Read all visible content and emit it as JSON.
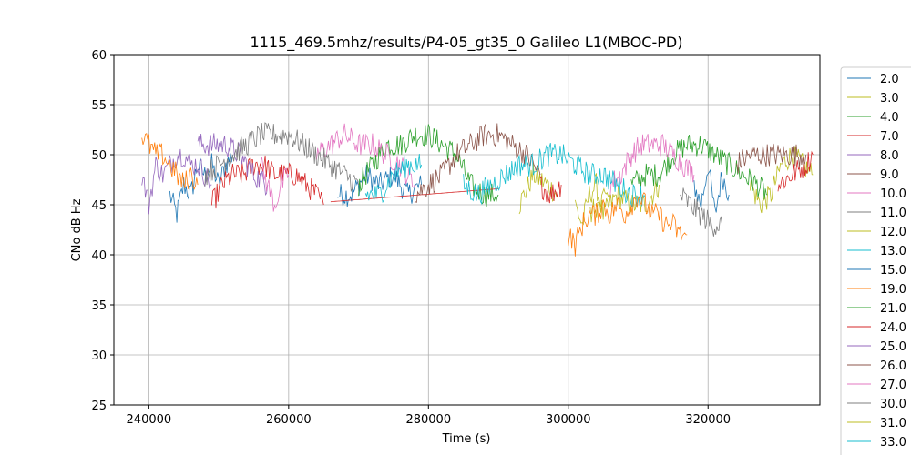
{
  "chart_data": {
    "type": "line",
    "title": "1115_469.5mhz/results/P4-05_gt35_0 Galileo L1(MBOC-PD)",
    "xlabel": "Time (s)",
    "ylabel": "CNo dB Hz",
    "xlim": [
      235000,
      336000
    ],
    "ylim": [
      25,
      60
    ],
    "xticks": [
      240000,
      260000,
      280000,
      300000,
      320000
    ],
    "yticks": [
      25,
      30,
      35,
      40,
      45,
      50,
      55,
      60
    ],
    "grid": true,
    "legend_position": "right-outside",
    "legend_visible_entries": [
      "2.0",
      "3.0",
      "4.0",
      "7.0",
      "8.0",
      "9.0",
      "10.0",
      "11.0",
      "12.0",
      "13.0",
      "15.0",
      "19.0",
      "21.0",
      "24.0",
      "25.0",
      "26.0",
      "27.0",
      "30.0",
      "31.0",
      "33.0"
    ],
    "series": [
      {
        "name": "2.0",
        "color": "#1f77b4",
        "segments": [
          {
            "x": [
              243000,
              244000,
              245000,
              246000,
              247000,
              248000,
              249000,
              250000,
              251000,
              252000
            ],
            "y": [
              46,
              44,
              47,
              46,
              49,
              48,
              49,
              47,
              49,
              50
            ]
          },
          {
            "x": [
              267000,
              269000,
              271000,
              273000,
              275000,
              277000,
              279000
            ],
            "y": [
              46,
              46,
              48,
              47,
              48,
              46,
              47
            ]
          },
          {
            "x": [
              318000,
              319000,
              320000,
              321000,
              322000,
              323000
            ],
            "y": [
              47,
              45,
              49,
              44,
              48,
              46
            ]
          }
        ]
      },
      {
        "name": "3.0",
        "color": "#bcbd22",
        "segments": [
          {
            "x": [
              293000,
              295000,
              297000,
              298500
            ],
            "y": [
              45,
              48,
              47,
              46
            ]
          },
          {
            "x": [
              301000,
              302000,
              303000,
              304000,
              305000,
              307000,
              309000,
              311000,
              313000
            ],
            "y": [
              45,
              43,
              46,
              47,
              44,
              46,
              45,
              45,
              47
            ]
          },
          {
            "x": [
              326000,
              327500,
              329000,
              330500,
              332000,
              333500,
              335000
            ],
            "y": [
              47,
              45,
              46,
              49,
              50,
              49,
              48
            ]
          }
        ]
      },
      {
        "name": "4.0",
        "color": "#2ca02c",
        "segments": [
          {
            "x": [
              270000,
              272000,
              274000,
              276000,
              278000,
              280000,
              282000,
              284000,
              286000,
              288000,
              290000
            ],
            "y": [
              47,
              49,
              51,
              51,
              52,
              52,
              51,
              50,
              47,
              46,
              46
            ]
          },
          {
            "x": [
              309000,
              311000,
              313000,
              315000,
              317000,
              319000,
              321000,
              323000,
              325000,
              327000,
              328500
            ],
            "y": [
              47,
              48,
              48,
              50,
              51,
              51,
              50,
              49,
              48,
              47,
              46
            ]
          }
        ]
      },
      {
        "name": "7.0",
        "color": "#d62728",
        "segments": [
          {
            "x": [
              249000,
              250500,
              252000,
              253500,
              255000,
              256500,
              258000,
              259500,
              261000,
              262500,
              264000,
              265000
            ],
            "y": [
              45,
              47,
              48,
              48,
              49,
              49,
              48,
              48,
              48,
              47,
              46,
              45
            ]
          },
          {
            "x": [
              266000,
              290000
            ],
            "y": [
              45.3,
              46.6
            ]
          },
          {
            "x": [
              296000,
              297500,
              299000
            ],
            "y": [
              47,
              46,
              47
            ]
          },
          {
            "x": [
              330000,
              332000,
              334000,
              335000
            ],
            "y": [
              47,
              48,
              49,
              50
            ]
          }
        ]
      },
      {
        "name": "8.0",
        "color": "#9467bd",
        "segments": [
          {
            "x": [
              239000,
              240000,
              241000,
              242000,
              243000,
              244000,
              245000,
              246000,
              247000,
              248000,
              249000
            ],
            "y": [
              48,
              45,
              49,
              48,
              49,
              50,
              50,
              49,
              49,
              48,
              47
            ]
          },
          {
            "x": [
              247000,
              249000,
              251000,
              253000,
              255000,
              257000
            ],
            "y": [
              51,
              51,
              51,
              50,
              48,
              47
            ]
          }
        ]
      },
      {
        "name": "9.0",
        "color": "#8c564b",
        "segments": [
          {
            "x": [
              278000,
              280000,
              282000,
              284000,
              286000,
              288000,
              290000,
              292000,
              294000,
              296000
            ],
            "y": [
              46,
              47,
              48,
              50,
              51,
              52,
              52,
              51,
              50,
              48
            ]
          },
          {
            "x": [
              324000,
              326000,
              328000,
              330000,
              332000,
              334000
            ],
            "y": [
              49,
              50,
              50,
              50,
              50,
              50
            ]
          }
        ]
      },
      {
        "name": "10.0",
        "color": "#e377c2",
        "segments": [
          {
            "x": [
              256000,
              257000,
              258000,
              259000,
              260000
            ],
            "y": [
              49,
              47,
              45,
              47,
              48
            ]
          },
          {
            "x": [
              264000,
              266000,
              268000,
              270000,
              272000,
              274000,
              276000,
              278000
            ],
            "y": [
              50,
              51,
              52,
              51,
              51,
              50,
              49,
              47
            ]
          },
          {
            "x": [
              306000,
              307500,
              309000,
              310500,
              312000,
              313500,
              315000,
              316500,
              318000
            ],
            "y": [
              47,
              48,
              50,
              51,
              51,
              51,
              50,
              49,
              48
            ]
          }
        ]
      },
      {
        "name": "11.0",
        "color": "#7f7f7f",
        "segments": [
          {
            "x": [
              248000,
              250000,
              252000,
              254000,
              256000,
              258000,
              260000,
              262000,
              264000,
              266000,
              268000,
              270000
            ],
            "y": [
              48,
              49,
              50,
              51,
              52,
              52,
              52,
              51,
              50,
              49,
              48,
              47
            ]
          },
          {
            "x": [
              316000,
              317500,
              319000,
              320500,
              322000
            ],
            "y": [
              46,
              45,
              44,
              43,
              43
            ]
          }
        ]
      },
      {
        "name": "12.0",
        "color": "#bcbd22",
        "segments": [
          {
            "x": [
              303000,
              304500,
              306000
            ],
            "y": [
              44,
              45,
              46
            ]
          }
        ]
      },
      {
        "name": "13.0",
        "color": "#17becf",
        "segments": [
          {
            "x": [
              271000,
              273000,
              275000,
              277000,
              279000
            ],
            "y": [
              46,
              46,
              48,
              49,
              49
            ]
          },
          {
            "x": [
              285000,
              287000,
              289000,
              291000,
              293000,
              295000,
              297000,
              299000,
              301000,
              303000,
              305000,
              307000,
              309000,
              311000
            ],
            "y": [
              47,
              46,
              47,
              48,
              49,
              49,
              50,
              50,
              49,
              48,
              48,
              47,
              46,
              46
            ]
          }
        ]
      },
      {
        "name": "15.0",
        "color": "#1f77b4",
        "segments": []
      },
      {
        "name": "19.0",
        "color": "#ff7f0e",
        "segments": [
          {
            "x": [
              239000,
              240000,
              241000,
              242000,
              243000,
              244000,
              245000,
              246000,
              247000
            ],
            "y": [
              52,
              51,
              50,
              50,
              49,
              48,
              47,
              48,
              47
            ]
          },
          {
            "x": [
              300000,
              301000,
              302000,
              303000,
              304000,
              305000,
              306000,
              307000,
              308000,
              309000,
              310000,
              311000,
              312000,
              313000,
              314000,
              315000,
              316000,
              317000
            ],
            "y": [
              42,
              41,
              43,
              44,
              44,
              45,
              44,
              45,
              44,
              45,
              46,
              45,
              44,
              44,
              43,
              43,
              42,
              42
            ]
          }
        ]
      },
      {
        "name": "21.0",
        "color": "#2ca02c",
        "segments": []
      },
      {
        "name": "24.0",
        "color": "#d62728",
        "segments": []
      },
      {
        "name": "25.0",
        "color": "#9467bd",
        "segments": []
      },
      {
        "name": "26.0",
        "color": "#8c564b",
        "segments": []
      },
      {
        "name": "27.0",
        "color": "#e377c2",
        "segments": []
      },
      {
        "name": "30.0",
        "color": "#7f7f7f",
        "segments": []
      },
      {
        "name": "31.0",
        "color": "#bcbd22",
        "segments": []
      },
      {
        "name": "33.0",
        "color": "#17becf",
        "segments": []
      }
    ]
  }
}
